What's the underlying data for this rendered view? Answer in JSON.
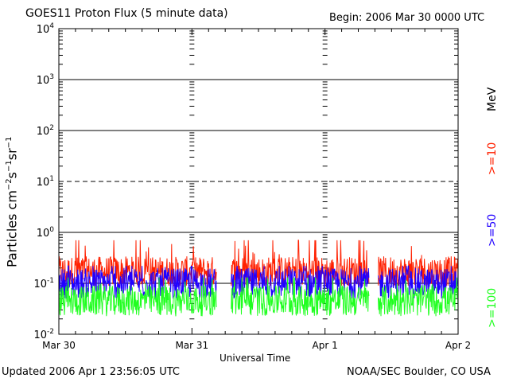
{
  "header": {
    "title": "GOES11 Proton Flux (5 minute data)",
    "begin": "Begin: 2006 Mar 30 0000 UTC"
  },
  "footer": {
    "updated": "Updated 2006 Apr  1 23:56:05 UTC",
    "credit": "NOAA/SEC Boulder, CO USA"
  },
  "chart_data": {
    "type": "line",
    "title": "GOES11 Proton Flux (5 minute data)",
    "xlabel": "Universal Time",
    "ylabel": "Particles cm⁻²s⁻¹sr⁻¹",
    "yscale": "log",
    "ylim": [
      0.01,
      10000
    ],
    "yticks": [
      {
        "base": "10",
        "exp": "-2",
        "value": 0.01
      },
      {
        "base": "10",
        "exp": "-1",
        "value": 0.1
      },
      {
        "base": "10",
        "exp": "0",
        "value": 1
      },
      {
        "base": "10",
        "exp": "1",
        "value": 10
      },
      {
        "base": "10",
        "exp": "2",
        "value": 100
      },
      {
        "base": "10",
        "exp": "3",
        "value": 1000
      },
      {
        "base": "10",
        "exp": "4",
        "value": 10000
      }
    ],
    "reference_lines": [
      {
        "value": 1000,
        "style": "solid"
      },
      {
        "value": 100,
        "style": "solid"
      },
      {
        "value": 10,
        "style": "dashed"
      },
      {
        "value": 1,
        "style": "solid"
      },
      {
        "value": 0.1,
        "style": "solid"
      }
    ],
    "xlim": [
      "2006-03-30",
      "2006-04-02"
    ],
    "xticks": [
      "Mar 30",
      "Mar 31",
      "Apr 1",
      "Apr 2"
    ],
    "energy_unit": "MeV",
    "data_gaps": [
      [
        "2006-03-31 04:30",
        "2006-03-31 07:00"
      ],
      [
        "2006-04-01 08:00",
        "2006-04-01 09:30"
      ]
    ],
    "series": [
      {
        "name": ">=10",
        "color": "#ff2000",
        "typical": 0.17,
        "min": 0.09,
        "max": 0.7
      },
      {
        "name": ">=50",
        "color": "#2000ff",
        "typical": 0.1,
        "min": 0.05,
        "max": 0.22
      },
      {
        "name": ">=100",
        "color": "#20ff20",
        "typical": 0.045,
        "min": 0.018,
        "max": 0.13
      }
    ]
  }
}
